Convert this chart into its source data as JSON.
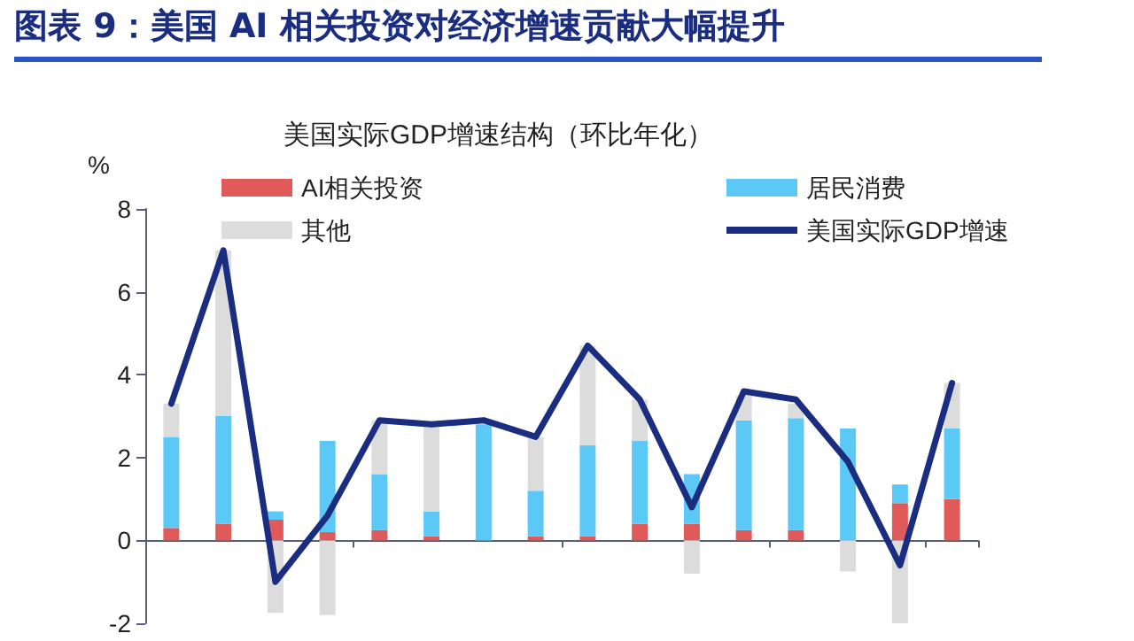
{
  "chart_data": {
    "type": "bar",
    "title": "图表 9：美国 AI 相关投资对经济增速贡献大幅提升",
    "subtitle": "美国实际GDP增速结构（环比年化）",
    "ylabel": "%",
    "categories": [
      null,
      null,
      null,
      null,
      null,
      null,
      null,
      null,
      null,
      null,
      null,
      null,
      null,
      null,
      null,
      null
    ],
    "stacked": true,
    "series": [
      {
        "name": "AI相关投资",
        "color": "#e05a5a",
        "values": [
          0.3,
          0.4,
          0.5,
          0.2,
          0.25,
          0.1,
          0,
          0.1,
          0.1,
          0.4,
          0.4,
          0.25,
          0.25,
          0,
          0.9,
          1.0
        ]
      },
      {
        "name": "居民消费",
        "color": "#5bc8f5",
        "values": [
          2.2,
          2.6,
          0.2,
          2.2,
          1.35,
          0.6,
          2.8,
          1.1,
          2.2,
          2.0,
          1.2,
          2.65,
          2.7,
          2.7,
          0.45,
          1.7
        ]
      },
      {
        "name": "其他",
        "color": "#dcdcdc",
        "values": [
          0.8,
          4.0,
          -1.75,
          -1.8,
          1.3,
          2.1,
          null,
          1.3,
          2.4,
          1.0,
          -0.8,
          0.6,
          0.35,
          -0.75,
          -2.0,
          1.1
        ]
      },
      {
        "name": "美国实际GDP增速",
        "type": "line",
        "color": "#1a2d80",
        "values": [
          3.3,
          7.0,
          -1.0,
          0.6,
          2.9,
          2.8,
          2.9,
          2.5,
          4.7,
          3.4,
          0.8,
          3.6,
          3.4,
          1.9,
          -0.6,
          3.8
        ]
      }
    ],
    "ylim": [
      -2,
      8
    ],
    "yticks": [
      -2,
      0,
      2,
      4,
      6,
      8
    ],
    "legend": "top",
    "marker": "none"
  }
}
